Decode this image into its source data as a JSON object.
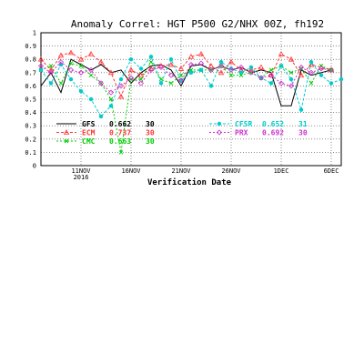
{
  "chart_data": {
    "type": "line",
    "title": "Anomaly Correl: HGT P500 G2/NHX 00Z, fh192",
    "xlabel": "Verification Date",
    "ylabel": "",
    "ylim": [
      0,
      1
    ],
    "y_ticks": [
      "0",
      "0.1",
      "0.2",
      "0.3",
      "0.4",
      "0.5",
      "0.6",
      "0.7",
      "0.8",
      "0.9",
      "1"
    ],
    "x_range": [
      7,
      37
    ],
    "x_ticks": [
      {
        "day": 11,
        "label": "11NOV",
        "sublabel": "2016"
      },
      {
        "day": 16,
        "label": "16NOV",
        "sublabel": ""
      },
      {
        "day": 21,
        "label": "21NOV",
        "sublabel": ""
      },
      {
        "day": 26,
        "label": "26NOV",
        "sublabel": ""
      },
      {
        "day": 31,
        "label": "1DEC",
        "sublabel": ""
      },
      {
        "day": 36,
        "label": "6DEC",
        "sublabel": ""
      }
    ],
    "x_unit": "day of November 2016 (31 = 1DEC)",
    "grid": true,
    "legend_left": [
      {
        "label": "GFS",
        "score": "0.662",
        "count": "30",
        "color": "#000000"
      },
      {
        "label": "ECM",
        "score": "0.737",
        "count": "30",
        "color": "#ff3333"
      },
      {
        "label": "CMC",
        "score": "0.663",
        "count": "30",
        "color": "#00cc00"
      }
    ],
    "legend_right": [
      {
        "label": "CFSR",
        "score": "0.652",
        "count": "31",
        "color": "#00cccc"
      },
      {
        "label": "PRX",
        "score": "0.692",
        "count": "30",
        "color": "#cc33cc"
      }
    ],
    "series": [
      {
        "name": "GFS",
        "color": "#000000",
        "dash": "",
        "marker": "none",
        "x": [
          7,
          8,
          9,
          10,
          11,
          12,
          13,
          14,
          15,
          16,
          17,
          18,
          19,
          20,
          21,
          22,
          23,
          24,
          25,
          26,
          27,
          28,
          29,
          30,
          31,
          32,
          33,
          34,
          35,
          36
        ],
        "values": [
          0.6,
          0.7,
          0.55,
          0.8,
          0.76,
          0.72,
          0.76,
          0.7,
          0.72,
          0.62,
          0.7,
          0.75,
          0.76,
          0.72,
          0.6,
          0.75,
          0.76,
          0.72,
          0.75,
          0.72,
          0.74,
          0.7,
          0.72,
          0.7,
          0.45,
          0.45,
          0.72,
          0.68,
          0.7,
          0.72
        ]
      },
      {
        "name": "ECM",
        "color": "#ff3333",
        "dash": "3,2",
        "marker": "triangle",
        "x": [
          7,
          8,
          9,
          10,
          11,
          12,
          13,
          14,
          15,
          16,
          17,
          18,
          19,
          20,
          21,
          22,
          23,
          24,
          25,
          26,
          27,
          28,
          29,
          30,
          31,
          32,
          33,
          34,
          35,
          36
        ],
        "values": [
          0.8,
          0.72,
          0.83,
          0.85,
          0.8,
          0.84,
          0.78,
          0.7,
          0.52,
          0.72,
          0.68,
          0.73,
          0.75,
          0.76,
          0.73,
          0.82,
          0.84,
          0.75,
          0.7,
          0.78,
          0.72,
          0.72,
          0.74,
          0.68,
          0.84,
          0.8,
          0.68,
          0.76,
          0.74,
          0.72
        ]
      },
      {
        "name": "CMC",
        "color": "#00cc00",
        "dash": "2,2",
        "marker": "x",
        "x": [
          7,
          8,
          9,
          10,
          11,
          12,
          13,
          14,
          15,
          16,
          17,
          18,
          19,
          20,
          21,
          22,
          23,
          24,
          25,
          26,
          27,
          28,
          29,
          30,
          31,
          32,
          33,
          34,
          35,
          36
        ],
        "values": [
          0.72,
          0.75,
          0.62,
          0.77,
          0.75,
          0.68,
          0.62,
          0.5,
          0.1,
          0.65,
          0.65,
          0.78,
          0.65,
          0.62,
          0.68,
          0.72,
          0.72,
          0.72,
          0.75,
          0.68,
          0.68,
          0.7,
          0.66,
          0.72,
          0.75,
          0.7,
          0.73,
          0.62,
          0.75,
          0.72
        ]
      },
      {
        "name": "CFSR",
        "color": "#00cccc",
        "dash": "3,2",
        "marker": "dot",
        "x": [
          7,
          8,
          9,
          10,
          11,
          12,
          13,
          14,
          15,
          16,
          17,
          18,
          19,
          20,
          21,
          22,
          23,
          24,
          25,
          26,
          27,
          28,
          29,
          30,
          31,
          32,
          33,
          34,
          35,
          36,
          37
        ],
        "values": [
          0.72,
          0.62,
          0.76,
          0.65,
          0.56,
          0.5,
          0.37,
          0.45,
          0.65,
          0.8,
          0.73,
          0.82,
          0.62,
          0.8,
          0.64,
          0.7,
          0.72,
          0.6,
          0.78,
          0.73,
          0.7,
          0.74,
          0.66,
          0.62,
          0.75,
          0.65,
          0.42,
          0.78,
          0.68,
          0.62,
          0.65
        ]
      },
      {
        "name": "PRX",
        "color": "#cc33cc",
        "dash": "2,2",
        "marker": "diamond",
        "x": [
          7,
          8,
          9,
          10,
          11,
          12,
          13,
          14,
          15,
          16,
          17,
          18,
          19,
          20,
          21,
          22,
          23,
          24,
          25,
          26,
          27,
          28,
          29,
          30,
          31,
          32,
          33,
          34,
          35,
          36
        ],
        "values": [
          0.75,
          0.7,
          0.78,
          0.72,
          0.7,
          0.72,
          0.62,
          0.55,
          0.6,
          0.66,
          0.62,
          0.72,
          0.74,
          0.68,
          0.64,
          0.76,
          0.77,
          0.72,
          0.75,
          0.72,
          0.74,
          0.7,
          0.66,
          0.68,
          0.62,
          0.6,
          0.74,
          0.7,
          0.73,
          0.72
        ]
      }
    ]
  }
}
